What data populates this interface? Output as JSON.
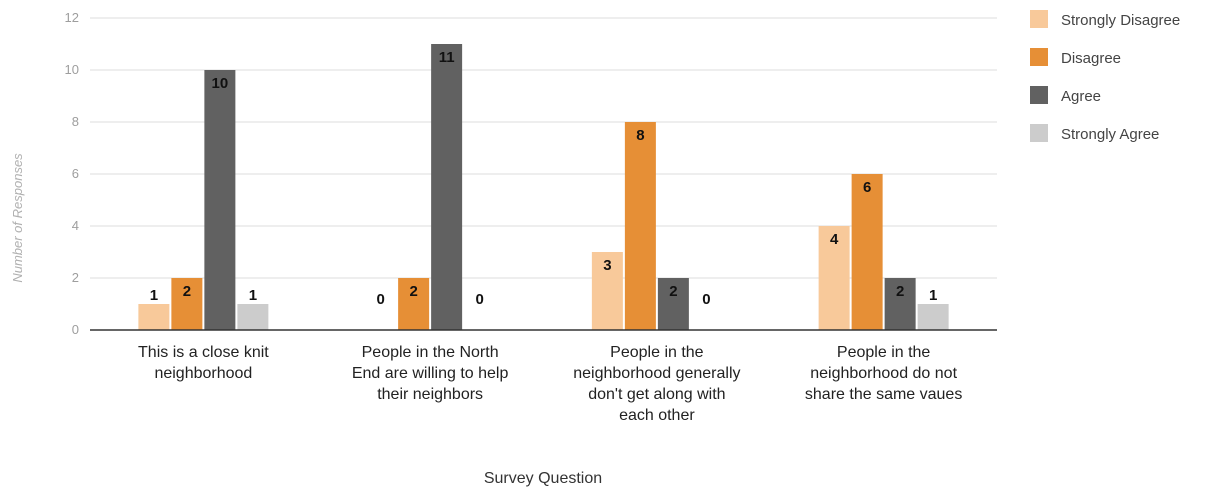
{
  "chart_data": {
    "type": "bar",
    "title": "",
    "xlabel": "Survey Question",
    "ylabel": "Number of Responses",
    "ylim": [
      0,
      12
    ],
    "yticks": [
      "0",
      "2",
      "4",
      "6",
      "8",
      "10",
      "12"
    ],
    "grid": true,
    "legend_position": "top-right",
    "categories": [
      [
        "This is a close knit",
        "neighborhood"
      ],
      [
        "People in the North",
        "End are willing to help",
        "their neighbors"
      ],
      [
        "People in the",
        "neighborhood generally",
        "don't get along with",
        "each other"
      ],
      [
        "People in the",
        "neighborhood do not",
        "share the same vaues"
      ]
    ],
    "series": [
      {
        "name": "Strongly Disagree",
        "color": "#f8c99a",
        "values": [
          1,
          0,
          3,
          4
        ]
      },
      {
        "name": "Disagree",
        "color": "#e68f36",
        "values": [
          2,
          2,
          8,
          6
        ]
      },
      {
        "name": "Agree",
        "color": "#616161",
        "values": [
          10,
          11,
          2,
          2
        ]
      },
      {
        "name": "Strongly Agree",
        "color": "#cccccc",
        "values": [
          1,
          0,
          0,
          1
        ]
      }
    ]
  }
}
